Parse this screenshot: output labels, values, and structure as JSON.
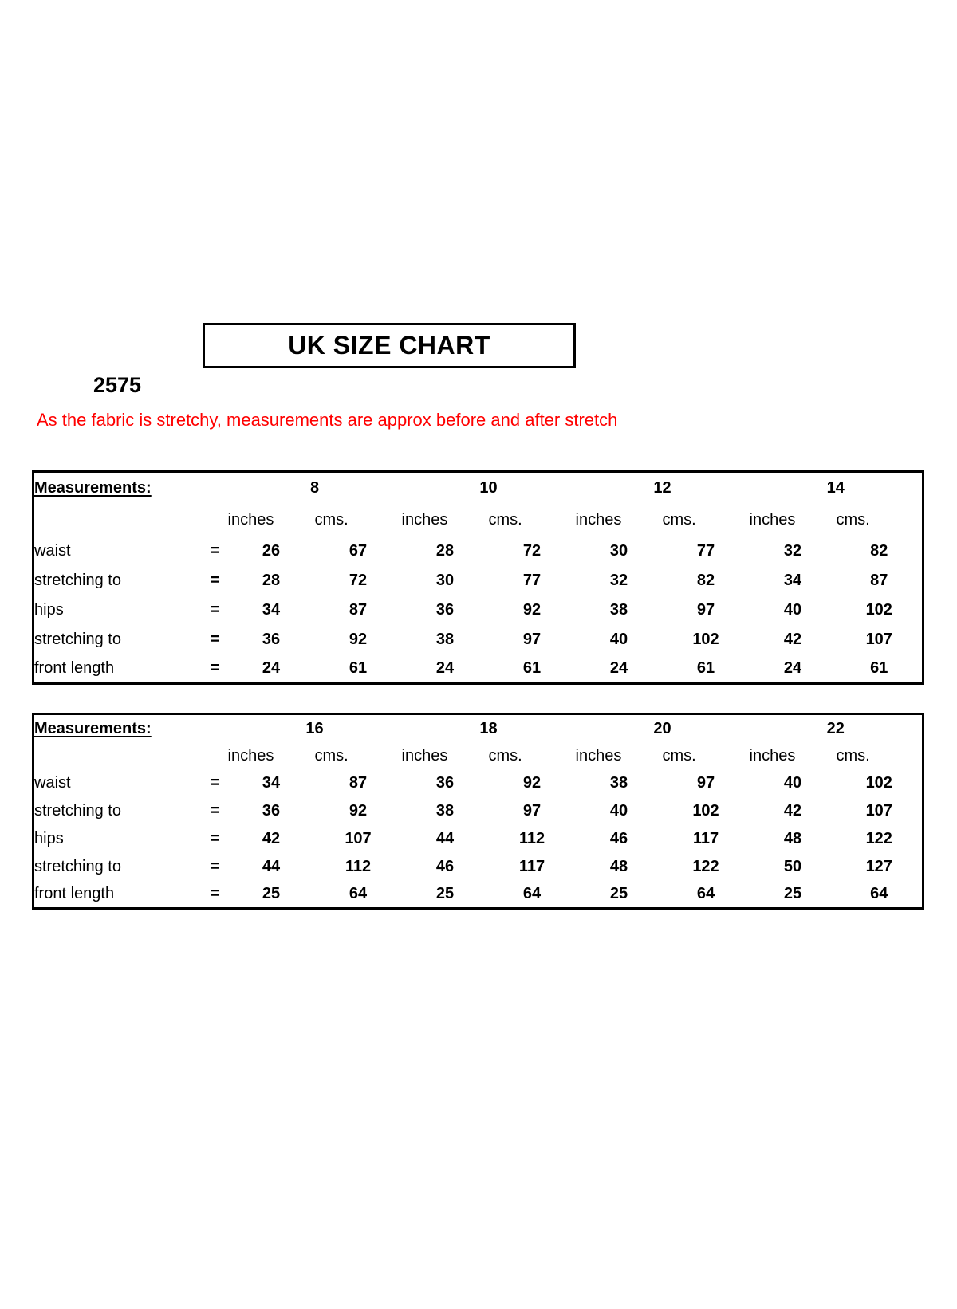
{
  "page": {
    "title": "UK SIZE CHART",
    "style_number": "2575",
    "stretch_note": "As the fabric is stretchy, measurements are approx before and after stretch",
    "note_color": "#ff0000",
    "line_color": "#000000",
    "background_color": "#ffffff"
  },
  "tables": [
    {
      "label_header": "Measurements:",
      "sizes": [
        "8",
        "10",
        "12",
        "14"
      ],
      "units": [
        "inches",
        "cms."
      ],
      "rows": [
        {
          "label": "waist",
          "eq": "=",
          "values": [
            "26",
            "67",
            "28",
            "72",
            "30",
            "77",
            "32",
            "82"
          ],
          "separator_below": "dashed"
        },
        {
          "label": "stretching to",
          "eq": "=",
          "values": [
            "28",
            "72",
            "30",
            "77",
            "32",
            "82",
            "34",
            "87"
          ],
          "separator_below": "solid"
        },
        {
          "label": "hips",
          "eq": "=",
          "values": [
            "34",
            "87",
            "36",
            "92",
            "38",
            "97",
            "40",
            "102"
          ],
          "separator_below": "dashed"
        },
        {
          "label": "stretching to",
          "eq": "=",
          "values": [
            "36",
            "92",
            "38",
            "97",
            "40",
            "102",
            "42",
            "107"
          ],
          "separator_below": "solid"
        },
        {
          "label": "front length",
          "eq": "=",
          "values": [
            "24",
            "61",
            "24",
            "61",
            "24",
            "61",
            "24",
            "61"
          ],
          "separator_below": "none"
        }
      ]
    },
    {
      "label_header": "Measurements:",
      "sizes": [
        "16",
        "18",
        "20",
        "22"
      ],
      "units": [
        "inches",
        "cms."
      ],
      "rows": [
        {
          "label": "waist",
          "eq": "=",
          "values": [
            "34",
            "87",
            "36",
            "92",
            "38",
            "97",
            "40",
            "102"
          ],
          "separator_below": "dashed"
        },
        {
          "label": "stretching to",
          "eq": "=",
          "values": [
            "36",
            "92",
            "38",
            "97",
            "40",
            "102",
            "42",
            "107"
          ],
          "separator_below": "solid"
        },
        {
          "label": "hips",
          "eq": "=",
          "values": [
            "42",
            "107",
            "44",
            "112",
            "46",
            "117",
            "48",
            "122"
          ],
          "separator_below": "dashed"
        },
        {
          "label": "stretching to",
          "eq": "=",
          "values": [
            "44",
            "112",
            "46",
            "117",
            "48",
            "122",
            "50",
            "127"
          ],
          "separator_below": "solid"
        },
        {
          "label": "front length",
          "eq": "=",
          "values": [
            "25",
            "64",
            "25",
            "64",
            "25",
            "64",
            "25",
            "64"
          ],
          "separator_below": "none"
        }
      ]
    }
  ]
}
